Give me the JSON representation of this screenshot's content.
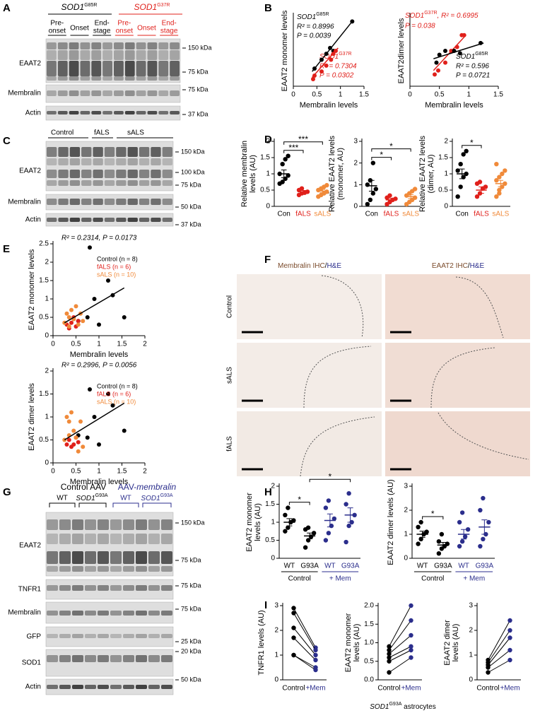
{
  "panel_labels": [
    "A",
    "B",
    "C",
    "D",
    "E",
    "F",
    "G",
    "H",
    "I"
  ],
  "A": {
    "groups": [
      {
        "gene": "SOD1",
        "allele": "G85R"
      },
      {
        "gene": "SOD1",
        "allele": "G37R"
      }
    ],
    "stages": [
      [
        "Pre-",
        "onset"
      ],
      [
        "Onset"
      ],
      [
        "End-",
        "stage"
      ],
      [
        "Pre-",
        "onset"
      ],
      [
        "Onset"
      ],
      [
        "End-",
        "stage"
      ]
    ],
    "rows": [
      "EAAT2",
      "Membralin",
      "Actin"
    ],
    "markers": [
      "150 kDa",
      "75 kDa",
      "75 kDa",
      "37 kDa"
    ]
  },
  "B": {
    "annotations": [
      {
        "gene": "SOD1",
        "allele": "G85R",
        "r2": "R² = 0.8996",
        "p": "P = 0.0039"
      },
      {
        "gene": "SOD1",
        "allele": "G37R",
        "r2": "R² = 0.7304",
        "p": "P = 0.0302"
      },
      {
        "gene": "SOD1",
        "allele": "G37R",
        "r2": ", R² = 0.6995",
        "p": "P = 0.038"
      },
      {
        "gene": "SOD1",
        "allele": "G85R",
        "r2": "R² = 0.596",
        "p": "P = 0.0721"
      }
    ]
  },
  "C": {
    "groups": [
      "Control",
      "fALS",
      "sALS"
    ],
    "rows": [
      "EAAT2",
      "Membralin",
      "Actin"
    ],
    "markers": [
      "150 kDa",
      "100 kDa",
      "75 kDa",
      "50 kDa",
      "37 kDa"
    ]
  },
  "F": {
    "columns": [
      {
        "stain": "Membralin IHC",
        "sep": "/",
        "counter": "H&E"
      },
      {
        "stain": "EAAT2 IHC",
        "sep": "/",
        "counter": "H&E"
      }
    ],
    "rows": [
      "Control",
      "sALS",
      "fALS"
    ]
  },
  "G": {
    "headers": [
      {
        "text": "Control AAV"
      },
      {
        "text": "AAV-",
        "italic": "membralin"
      }
    ],
    "groups": [
      {
        "text": "WT"
      },
      {
        "gene": "SOD1",
        "allele": "G93A"
      },
      {
        "text": "WT"
      },
      {
        "gene": "SOD1",
        "allele": "G93A"
      }
    ],
    "rows": [
      "EAAT2",
      "TNFR1",
      "Membralin",
      "GFP",
      "SOD1",
      "Actin"
    ],
    "markers": [
      "150 kDa",
      "75 kDa",
      "75 kDa",
      "75 kDa",
      "25 kDa",
      "20 kDa",
      "50 kDa"
    ]
  },
  "I": {
    "xlabel": {
      "gene": "SOD1",
      "allele": "G93A",
      "text": " astrocytes"
    }
  },
  "charts": [
    {
      "type": "scatter",
      "xlabel": "Membralin levels",
      "ylabel": [
        "EAAT2 monomer levels"
      ],
      "xlim": [
        0,
        1.5
      ],
      "ylim": [
        0.2,
        1.4
      ],
      "xticks": [
        0,
        0.5,
        1,
        1.5
      ],
      "series": [
        {
          "color": "#000000",
          "x": [
            0.45,
            0.6,
            0.7,
            0.78,
            0.85,
            1.25
          ],
          "y": [
            0.5,
            0.65,
            0.75,
            0.85,
            0.8,
            1.3
          ],
          "fit": {
            "x": [
              0.4,
              1.25
            ],
            "y": [
              0.45,
              1.3
            ]
          }
        },
        {
          "color": "#e0201b",
          "x": [
            0.42,
            0.45,
            0.6,
            0.7,
            0.8,
            0.85,
            0.9
          ],
          "y": [
            0.32,
            0.38,
            0.45,
            0.55,
            0.65,
            0.75,
            0.8
          ],
          "fit": {
            "x": [
              0.4,
              0.95
            ],
            "y": [
              0.35,
              0.85
            ]
          }
        }
      ]
    },
    {
      "type": "scatter",
      "xlabel": "Membralin levels",
      "ylabel": [
        "EAAT2dimer levels"
      ],
      "xlim": [
        0,
        1.5
      ],
      "ylim": [
        0.3,
        1.2
      ],
      "xticks": [
        0,
        0.5,
        1,
        1.5
      ],
      "series": [
        {
          "color": "#e0201b",
          "x": [
            0.42,
            0.48,
            0.6,
            0.7,
            0.8,
            0.88,
            0.92
          ],
          "y": [
            0.45,
            0.5,
            0.6,
            0.75,
            0.8,
            0.95,
            0.95
          ],
          "fit": {
            "x": [
              0.4,
              0.95
            ],
            "y": [
              0.5,
              0.95
            ]
          }
        },
        {
          "color": "#000000",
          "x": [
            0.45,
            0.5,
            0.6,
            0.75,
            0.85,
            1.2
          ],
          "y": [
            0.6,
            0.7,
            0.75,
            0.75,
            0.72,
            0.85
          ],
          "fit": {
            "x": [
              0.4,
              1.25
            ],
            "y": [
              0.65,
              0.85
            ]
          }
        }
      ]
    },
    {
      "type": "dot",
      "ylabel": [
        "Relative membralin",
        "levels (AU)"
      ],
      "ylim": [
        0,
        2
      ],
      "yticks": [
        0,
        0.5,
        1,
        1.5,
        2
      ],
      "series": [
        {
          "name": "Con",
          "color": "#000000",
          "values": [
            0.7,
            0.75,
            0.85,
            0.95,
            1.0,
            1.3,
            1.45,
            1.55
          ],
          "mean": 1.0,
          "sem": 0.12
        },
        {
          "name": "fALS",
          "color": "#e0201b",
          "values": [
            0.35,
            0.4,
            0.42,
            0.45,
            0.5,
            0.55
          ],
          "mean": 0.45,
          "sem": 0.04
        },
        {
          "name": "sALS",
          "color": "#f08a3a",
          "values": [
            0.3,
            0.35,
            0.4,
            0.45,
            0.5,
            0.55,
            0.6,
            0.65
          ],
          "mean": 0.47,
          "sem": 0.05
        }
      ],
      "sig": [
        {
          "from": 0,
          "to": 1,
          "label": "***"
        },
        {
          "from": 0,
          "to": 2,
          "label": "***"
        }
      ]
    },
    {
      "type": "dot",
      "ylabel": [
        "Relative EAAT2 levels",
        "(monomer, AU)"
      ],
      "ylim": [
        0,
        3
      ],
      "yticks": [
        0,
        1,
        2,
        3
      ],
      "series": [
        {
          "name": "Con",
          "color": "#000000",
          "values": [
            0.1,
            0.3,
            0.6,
            0.8,
            1.0,
            1.2,
            2.0
          ],
          "mean": 0.95,
          "sem": 0.25
        },
        {
          "name": "fALS",
          "color": "#e0201b",
          "values": [
            0.1,
            0.2,
            0.3,
            0.35,
            0.4,
            0.5
          ],
          "mean": 0.3,
          "sem": 0.07
        },
        {
          "name": "sALS",
          "color": "#f08a3a",
          "values": [
            0.1,
            0.2,
            0.3,
            0.4,
            0.5,
            0.6,
            0.7,
            0.8
          ],
          "mean": 0.45,
          "sem": 0.09
        }
      ],
      "sig": [
        {
          "from": 0,
          "to": 1,
          "label": "*"
        },
        {
          "from": 0,
          "to": 2,
          "label": "*"
        }
      ]
    },
    {
      "type": "dot",
      "ylabel": [
        "Relative EAAT2 levels",
        "(dimer, AU)"
      ],
      "ylim": [
        0,
        2
      ],
      "yticks": [
        0,
        0.5,
        1,
        1.5,
        2
      ],
      "series": [
        {
          "name": "Con",
          "color": "#000000",
          "values": [
            0.3,
            0.6,
            0.9,
            1.0,
            1.1,
            1.3,
            1.6,
            1.7
          ],
          "mean": 1.0,
          "sem": 0.15
        },
        {
          "name": "fALS",
          "color": "#e0201b",
          "values": [
            0.3,
            0.4,
            0.55,
            0.6,
            0.7,
            0.75
          ],
          "mean": 0.5,
          "sem": 0.1
        },
        {
          "name": "sALS",
          "color": "#f08a3a",
          "values": [
            0.3,
            0.5,
            0.6,
            0.7,
            0.8,
            0.9,
            1.0,
            1.1,
            1.3,
            0.4
          ],
          "mean": 0.7,
          "sem": 0.1
        }
      ],
      "sig": [
        {
          "from": 0,
          "to": 1,
          "label": "*"
        }
      ]
    },
    {
      "type": "scatter",
      "stat": "R² = 0.2314, P = 0.0173",
      "xlabel": "Membralin levels",
      "ylabel": [
        "EAAT2 monomer levels"
      ],
      "xlim": [
        0,
        2
      ],
      "ylim": [
        0,
        2.5
      ],
      "xticks": [
        0,
        0.5,
        1,
        1.5,
        2
      ],
      "yticks": [
        0,
        0.5,
        1,
        1.5,
        2,
        2.5
      ],
      "series": [
        {
          "name": "Control (n = 8)",
          "color": "#000000",
          "x": [
            0.55,
            0.75,
            0.8,
            0.9,
            1.0,
            1.2,
            1.3,
            1.55
          ],
          "y": [
            0.4,
            0.5,
            2.4,
            1.0,
            0.3,
            1.5,
            1.1,
            0.5
          ]
        },
        {
          "name": "fALS (n = 6)",
          "color": "#e0201b",
          "x": [
            0.3,
            0.35,
            0.4,
            0.45,
            0.5,
            0.55
          ],
          "y": [
            0.3,
            0.2,
            0.35,
            0.5,
            0.25,
            0.4
          ]
        },
        {
          "name": "sALS (n = 10)",
          "color": "#f08a3a",
          "x": [
            0.25,
            0.3,
            0.35,
            0.4,
            0.45,
            0.5,
            0.55,
            0.6,
            0.65,
            0.35
          ],
          "y": [
            0.35,
            0.6,
            0.5,
            0.7,
            0.45,
            0.8,
            0.3,
            0.6,
            0.4,
            0.25
          ]
        }
      ],
      "fit": {
        "x": [
          0.25,
          1.55
        ],
        "y": [
          0.35,
          1.3
        ]
      }
    },
    {
      "type": "scatter",
      "stat": "R² = 0.2996, P = 0.0056",
      "xlabel": "Membralin levels",
      "ylabel": [
        "EAAT2 dimer levels"
      ],
      "xlim": [
        0,
        2
      ],
      "ylim": [
        0,
        2
      ],
      "xticks": [
        0,
        0.5,
        1,
        1.5,
        2
      ],
      "yticks": [
        0,
        0.5,
        1,
        1.5,
        2
      ],
      "series": [
        {
          "name": "Control (n = 8)",
          "color": "#000000",
          "x": [
            0.55,
            0.75,
            0.8,
            0.9,
            1.0,
            1.2,
            1.3,
            1.55
          ],
          "y": [
            0.6,
            0.55,
            1.6,
            1.0,
            0.4,
            1.5,
            1.25,
            0.7
          ]
        },
        {
          "name": "fALS (n = 6)",
          "color": "#e0201b",
          "x": [
            0.3,
            0.35,
            0.4,
            0.45,
            0.5,
            0.55
          ],
          "y": [
            0.4,
            0.5,
            0.35,
            0.4,
            0.55,
            0.45
          ]
        },
        {
          "name": "sALS (n = 10)",
          "color": "#f08a3a",
          "x": [
            0.25,
            0.3,
            0.35,
            0.4,
            0.45,
            0.5,
            0.55,
            0.6,
            0.65,
            0.35
          ],
          "y": [
            0.5,
            1.0,
            0.9,
            1.1,
            0.7,
            0.55,
            0.25,
            0.9,
            0.35,
            0.6
          ]
        }
      ],
      "fit": {
        "x": [
          0.25,
          1.55
        ],
        "y": [
          0.5,
          1.3
        ]
      }
    },
    {
      "type": "dot",
      "ylabel": [
        "EAAT2 monomer",
        "levels (AU)"
      ],
      "ylim": [
        0,
        2
      ],
      "yticks": [
        0,
        0.5,
        1,
        1.5,
        2
      ],
      "series": [
        {
          "name": "WT",
          "color": "#000000",
          "values": [
            0.75,
            0.85,
            1.0,
            1.05,
            1.2,
            1.4
          ],
          "mean": 1.0,
          "sem": 0.1
        },
        {
          "name": "G93A",
          "color": "#000000",
          "values": [
            0.3,
            0.5,
            0.6,
            0.7,
            0.8,
            0.85
          ],
          "mean": 0.62,
          "sem": 0.08
        },
        {
          "name": "WT",
          "color": "#2b2e8c",
          "values": [
            0.5,
            0.7,
            0.9,
            1.1,
            1.4,
            1.6
          ],
          "mean": 1.05,
          "sem": 0.18
        },
        {
          "name": "G93A",
          "color": "#2b2e8c",
          "values": [
            0.45,
            0.9,
            1.0,
            1.2,
            1.5,
            1.8
          ],
          "mean": 1.2,
          "sem": 0.2
        }
      ],
      "groups": [
        {
          "label": "Control",
          "from": 0,
          "to": 1,
          "color": "#000000"
        },
        {
          "label": "+ Mem",
          "from": 2,
          "to": 3,
          "color": "#2b2e8c"
        }
      ],
      "sig": [
        {
          "from": 0,
          "to": 1,
          "label": "*"
        },
        {
          "from": 1,
          "to": 3,
          "label": "*"
        }
      ]
    },
    {
      "type": "dot",
      "ylabel": [
        "EAAT2 dimer levels (AU)"
      ],
      "ylim": [
        0,
        3
      ],
      "yticks": [
        0,
        1,
        2,
        3
      ],
      "series": [
        {
          "name": "WT",
          "color": "#000000",
          "values": [
            0.6,
            0.8,
            1.0,
            1.1,
            1.3,
            1.5
          ],
          "mean": 1.0,
          "sem": 0.13
        },
        {
          "name": "G93A",
          "color": "#000000",
          "values": [
            0.2,
            0.4,
            0.5,
            0.6,
            0.7,
            1.0
          ],
          "mean": 0.55,
          "sem": 0.11
        },
        {
          "name": "WT",
          "color": "#2b2e8c",
          "values": [
            0.5,
            0.7,
            0.9,
            1.2,
            1.5,
            1.9
          ],
          "mean": 1.0,
          "sem": 0.2
        },
        {
          "name": "G93A",
          "color": "#2b2e8c",
          "values": [
            0.5,
            0.8,
            1.0,
            1.5,
            2.0,
            2.5
          ],
          "mean": 1.3,
          "sem": 0.3
        }
      ],
      "groups": [
        {
          "label": "Control",
          "from": 0,
          "to": 1,
          "color": "#000000"
        },
        {
          "label": "+ Mem",
          "from": 2,
          "to": 3,
          "color": "#2b2e8c"
        }
      ],
      "sig": [
        {
          "from": 0,
          "to": 1,
          "label": "*"
        }
      ]
    },
    {
      "type": "paired",
      "ylabel": [
        "TNFR1 levels (AU)"
      ],
      "ylim": [
        0,
        3
      ],
      "yticks": [
        0,
        1,
        2,
        3
      ],
      "categories": [
        "Control",
        "+Mem"
      ],
      "colors": [
        "#000000",
        "#2b2e8c"
      ],
      "before": [
        2.9,
        2.7,
        2.1,
        1.7,
        1.0,
        1.0
      ],
      "after": [
        1.3,
        1.2,
        1.0,
        0.8,
        0.5,
        0.4
      ]
    },
    {
      "type": "paired",
      "ylabel": [
        "EAAT2 monomer",
        "levels (AU)"
      ],
      "ylim": [
        0,
        2
      ],
      "yticks": [
        {
          "value": 0,
          "label": "0.0"
        },
        0.5,
        {
          "value": 1,
          "label": "1.0"
        },
        1.5,
        {
          "value": 2,
          "label": "2.0"
        }
      ],
      "categories": [
        "Control",
        "+Mem"
      ],
      "colors": [
        "#000000",
        "#2b2e8c"
      ],
      "before": [
        0.2,
        0.5,
        0.6,
        0.7,
        0.8,
        0.9
      ],
      "after": [
        0.6,
        0.8,
        0.9,
        1.2,
        1.6,
        2.0
      ]
    },
    {
      "type": "paired",
      "ylabel": [
        "EAAT2 dimer",
        "levels (AU)"
      ],
      "ylim": [
        0,
        3
      ],
      "yticks": [
        0,
        1,
        2,
        3
      ],
      "categories": [
        "Control",
        "+Mem"
      ],
      "colors": [
        "#000000",
        "#2b2e8c"
      ],
      "before": [
        0.3,
        0.5,
        0.6,
        0.7,
        0.8
      ],
      "after": [
        0.8,
        1.2,
        1.7,
        2.0,
        2.4
      ]
    }
  ]
}
